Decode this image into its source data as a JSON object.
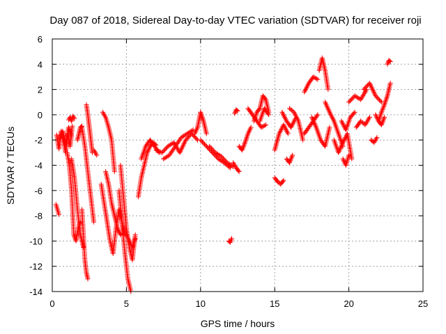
{
  "chart_data": {
    "type": "scatter",
    "title": "Day 087 of 2018, Sidereal Day-to-day VTEC variation (SDTVAR) for receiver roji",
    "xlabel": "GPS time / hours",
    "ylabel": "SDTVAR / TECUs",
    "xlim": [
      0,
      25
    ],
    "ylim": [
      -14,
      6
    ],
    "xticks": [
      0,
      5,
      10,
      15,
      20,
      25
    ],
    "yticks": [
      -14,
      -12,
      -10,
      -8,
      -6,
      -4,
      -2,
      0,
      2,
      4,
      6
    ],
    "grid": true,
    "marker": "+",
    "series": [
      {
        "name": "SDTVAR",
        "color": "#ff0000",
        "segments": [
          {
            "x": [
              0.25,
              0.45
            ],
            "y": [
              -7.1,
              -7.9
            ]
          },
          {
            "x": [
              0.3,
              0.45,
              0.6,
              0.75,
              0.9,
              1.05,
              1.2,
              1.35
            ],
            "y": [
              -1.6,
              -2.7,
              -1.3,
              -2.0,
              -3.0,
              -1.5,
              -2.5,
              -0.9
            ]
          },
          {
            "x": [
              0.5,
              0.7,
              0.9,
              1.1,
              1.3
            ],
            "y": [
              -2.0,
              -1.3,
              -2.4,
              -1.0,
              -1.7
            ]
          },
          {
            "x": [
              1.1,
              1.2,
              1.3,
              1.4,
              1.5
            ],
            "y": [
              -0.4,
              -0.2,
              -0.5,
              -0.1,
              -0.3
            ]
          },
          {
            "x": [
              1.0,
              1.15,
              1.3,
              1.45,
              1.6,
              1.75,
              1.9
            ],
            "y": [
              -3.0,
              -4.0,
              -6.0,
              -9.5,
              -10.0,
              -9.0,
              -8.5
            ]
          },
          {
            "x": [
              1.3,
              1.5,
              1.7,
              1.9,
              2.1
            ],
            "y": [
              -3.5,
              -5.0,
              -7.5,
              -9.5,
              -10.5
            ]
          },
          {
            "x": [
              1.7,
              1.8,
              1.9,
              2.0
            ],
            "y": [
              -2.0,
              -1.5,
              -1.0,
              -0.9
            ]
          },
          {
            "x": [
              2.0,
              2.2,
              2.4,
              2.6,
              2.8
            ],
            "y": [
              -1.0,
              -2.5,
              -4.5,
              -6.5,
              -8.5
            ]
          },
          {
            "x": [
              2.0,
              2.1,
              2.2,
              2.3,
              2.4
            ],
            "y": [
              -7.5,
              -9.5,
              -11.5,
              -12.5,
              -13.0
            ]
          },
          {
            "x": [
              2.3,
              2.4,
              2.5,
              2.6,
              2.7
            ],
            "y": [
              0.8,
              0.0,
              -1.0,
              -2.0,
              -3.0
            ]
          },
          {
            "x": [
              2.8,
              2.9,
              3.0
            ],
            "y": [
              -2.8,
              -3.0,
              -3.2
            ]
          },
          {
            "x": [
              3.3,
              3.5,
              3.7,
              3.9,
              4.1,
              4.3,
              4.5,
              4.7,
              4.9
            ],
            "y": [
              -5.5,
              -7.0,
              -8.5,
              -10.0,
              -11.0,
              -9.0,
              -7.5,
              -8.5,
              -9.5
            ]
          },
          {
            "x": [
              3.4,
              3.6,
              3.8,
              4.0,
              4.2
            ],
            "y": [
              0.2,
              -0.2,
              -1.0,
              -2.0,
              -4.5
            ]
          },
          {
            "x": [
              3.6,
              3.8,
              4.0,
              4.2,
              4.4,
              4.6
            ],
            "y": [
              -4.5,
              -5.5,
              -7.0,
              -8.0,
              -9.0,
              -9.5
            ]
          },
          {
            "x": [
              4.5,
              4.7,
              4.9,
              5.1,
              5.3
            ],
            "y": [
              -6.0,
              -8.5,
              -11.0,
              -13.0,
              -14.0
            ]
          },
          {
            "x": [
              4.6,
              4.8,
              5.0,
              5.2,
              5.4,
              5.6
            ],
            "y": [
              -4.0,
              -6.5,
              -9.0,
              -10.5,
              -11.5,
              -9.5
            ]
          },
          {
            "x": [
              5.0,
              5.2,
              5.4,
              5.6
            ],
            "y": [
              -9.5,
              -10.0,
              -10.5,
              -9.8
            ]
          },
          {
            "x": [
              5.8,
              6.0,
              6.2,
              6.4,
              6.6,
              6.8,
              7.0
            ],
            "y": [
              -6.5,
              -5.0,
              -4.0,
              -3.0,
              -2.5,
              -2.2,
              -2.4
            ]
          },
          {
            "x": [
              6.0,
              6.3,
              6.6,
              6.9,
              7.2
            ],
            "y": [
              -3.5,
              -2.5,
              -2.0,
              -2.5,
              -3.0
            ]
          },
          {
            "x": [
              7.0,
              7.4,
              7.8,
              8.2,
              8.6,
              9.0,
              9.4,
              9.8
            ],
            "y": [
              -2.8,
              -3.0,
              -2.5,
              -2.2,
              -3.0,
              -2.0,
              -1.5,
              -2.0
            ]
          },
          {
            "x": [
              7.5,
              7.9,
              8.3,
              8.7,
              9.1,
              9.5
            ],
            "y": [
              -3.5,
              -3.2,
              -2.5,
              -1.8,
              -1.5,
              -1.2
            ]
          },
          {
            "x": [
              9.6,
              9.8,
              10.0,
              10.2,
              10.4
            ],
            "y": [
              -1.5,
              -1.0,
              0.2,
              -0.5,
              -1.5
            ]
          },
          {
            "x": [
              10.0,
              10.4,
              10.8,
              11.2,
              11.6,
              12.0
            ],
            "y": [
              -2.0,
              -2.5,
              -3.0,
              -3.5,
              -3.8,
              -4.2
            ]
          },
          {
            "x": [
              10.6,
              11.0,
              11.4,
              11.8,
              12.2
            ],
            "y": [
              -2.5,
              -3.0,
              -3.3,
              -3.8,
              -4.1
            ]
          },
          {
            "x": [
              11.9,
              12.0,
              12.1
            ],
            "y": [
              -10.0,
              -10.1,
              -9.8
            ]
          },
          {
            "x": [
              12.2,
              12.4,
              12.6
            ],
            "y": [
              -3.8,
              -4.2,
              -4.5
            ]
          },
          {
            "x": [
              12.3,
              12.4,
              12.5
            ],
            "y": [
              0.1,
              0.4,
              0.3
            ]
          },
          {
            "x": [
              12.6,
              12.8,
              13.0,
              13.2,
              13.4
            ],
            "y": [
              -2.5,
              -2.8,
              -2.2,
              -1.5,
              -1.0
            ]
          },
          {
            "x": [
              13.2,
              13.5,
              13.8,
              14.1,
              14.4
            ],
            "y": [
              0.5,
              0.0,
              -0.5,
              -1.0,
              -0.8
            ]
          },
          {
            "x": [
              13.6,
              13.8,
              14.0,
              14.2,
              14.4,
              14.6
            ],
            "y": [
              -0.5,
              0.2,
              0.5,
              1.5,
              1.2,
              0.2
            ]
          },
          {
            "x": [
              14.0,
              14.3,
              14.6
            ],
            "y": [
              -0.5,
              0.5,
              0.0
            ]
          },
          {
            "x": [
              15.0,
              15.2,
              15.4,
              15.6
            ],
            "y": [
              -5.0,
              -5.3,
              -5.5,
              -5.2
            ]
          },
          {
            "x": [
              15.0,
              15.3,
              15.6,
              15.9
            ],
            "y": [
              -2.8,
              -1.5,
              -0.8,
              -1.5
            ]
          },
          {
            "x": [
              15.5,
              15.8,
              16.1,
              16.4
            ],
            "y": [
              0.2,
              -0.5,
              -1.0,
              -0.3
            ]
          },
          {
            "x": [
              15.8,
              16.0,
              16.2
            ],
            "y": [
              -3.5,
              -3.8,
              -3.2
            ]
          },
          {
            "x": [
              16.0,
              16.3,
              16.6,
              16.9
            ],
            "y": [
              0.5,
              0.2,
              -0.5,
              -2.0
            ]
          },
          {
            "x": [
              17.0,
              17.3,
              17.6,
              17.9
            ],
            "y": [
              -1.5,
              -1.0,
              -0.5,
              0.0
            ]
          },
          {
            "x": [
              17.0,
              17.3,
              17.6,
              17.9
            ],
            "y": [
              1.8,
              2.5,
              3.0,
              2.8
            ]
          },
          {
            "x": [
              17.5,
              17.8,
              18.1,
              18.4,
              18.7
            ],
            "y": [
              -0.2,
              -1.0,
              -2.0,
              -2.5,
              -1.0
            ]
          },
          {
            "x": [
              18.0,
              18.2,
              18.4,
              18.6
            ],
            "y": [
              3.5,
              4.5,
              3.5,
              2.0
            ]
          },
          {
            "x": [
              18.4,
              18.7,
              19.0,
              19.3,
              19.6
            ],
            "y": [
              1.0,
              0.2,
              -0.5,
              -1.5,
              -2.5
            ]
          },
          {
            "x": [
              19.0,
              19.3,
              19.6,
              19.9,
              20.2
            ],
            "y": [
              -2.0,
              -3.0,
              -2.2,
              -1.5,
              -3.5
            ]
          },
          {
            "x": [
              19.5,
              19.8,
              20.1,
              20.4
            ],
            "y": [
              -0.5,
              -1.2,
              -0.2,
              0.2
            ]
          },
          {
            "x": [
              19.6,
              19.8,
              20.0
            ],
            "y": [
              -3.5,
              -4.0,
              -3.2
            ]
          },
          {
            "x": [
              20.0,
              20.4,
              20.8,
              21.2
            ],
            "y": [
              1.0,
              1.5,
              1.2,
              2.0
            ]
          },
          {
            "x": [
              20.5,
              20.8,
              21.1,
              21.4
            ],
            "y": [
              -1.0,
              -0.5,
              -0.8,
              -0.2
            ]
          },
          {
            "x": [
              21.0,
              21.4,
              21.8,
              22.2
            ],
            "y": [
              2.0,
              2.5,
              1.5,
              1.0
            ]
          },
          {
            "x": [
              21.5,
              21.7,
              21.9
            ],
            "y": [
              -2.0,
              -2.2,
              -1.8
            ]
          },
          {
            "x": [
              21.8,
              22.0,
              22.2,
              22.4
            ],
            "y": [
              0.0,
              -0.5,
              -0.8,
              -0.2
            ]
          },
          {
            "x": [
              22.0,
              22.2,
              22.4,
              22.6,
              22.8
            ],
            "y": [
              -0.5,
              0.2,
              0.8,
              1.5,
              2.5
            ]
          },
          {
            "x": [
              22.6,
              22.7,
              22.8
            ],
            "y": [
              4.0,
              4.3,
              4.2
            ]
          }
        ]
      }
    ]
  }
}
